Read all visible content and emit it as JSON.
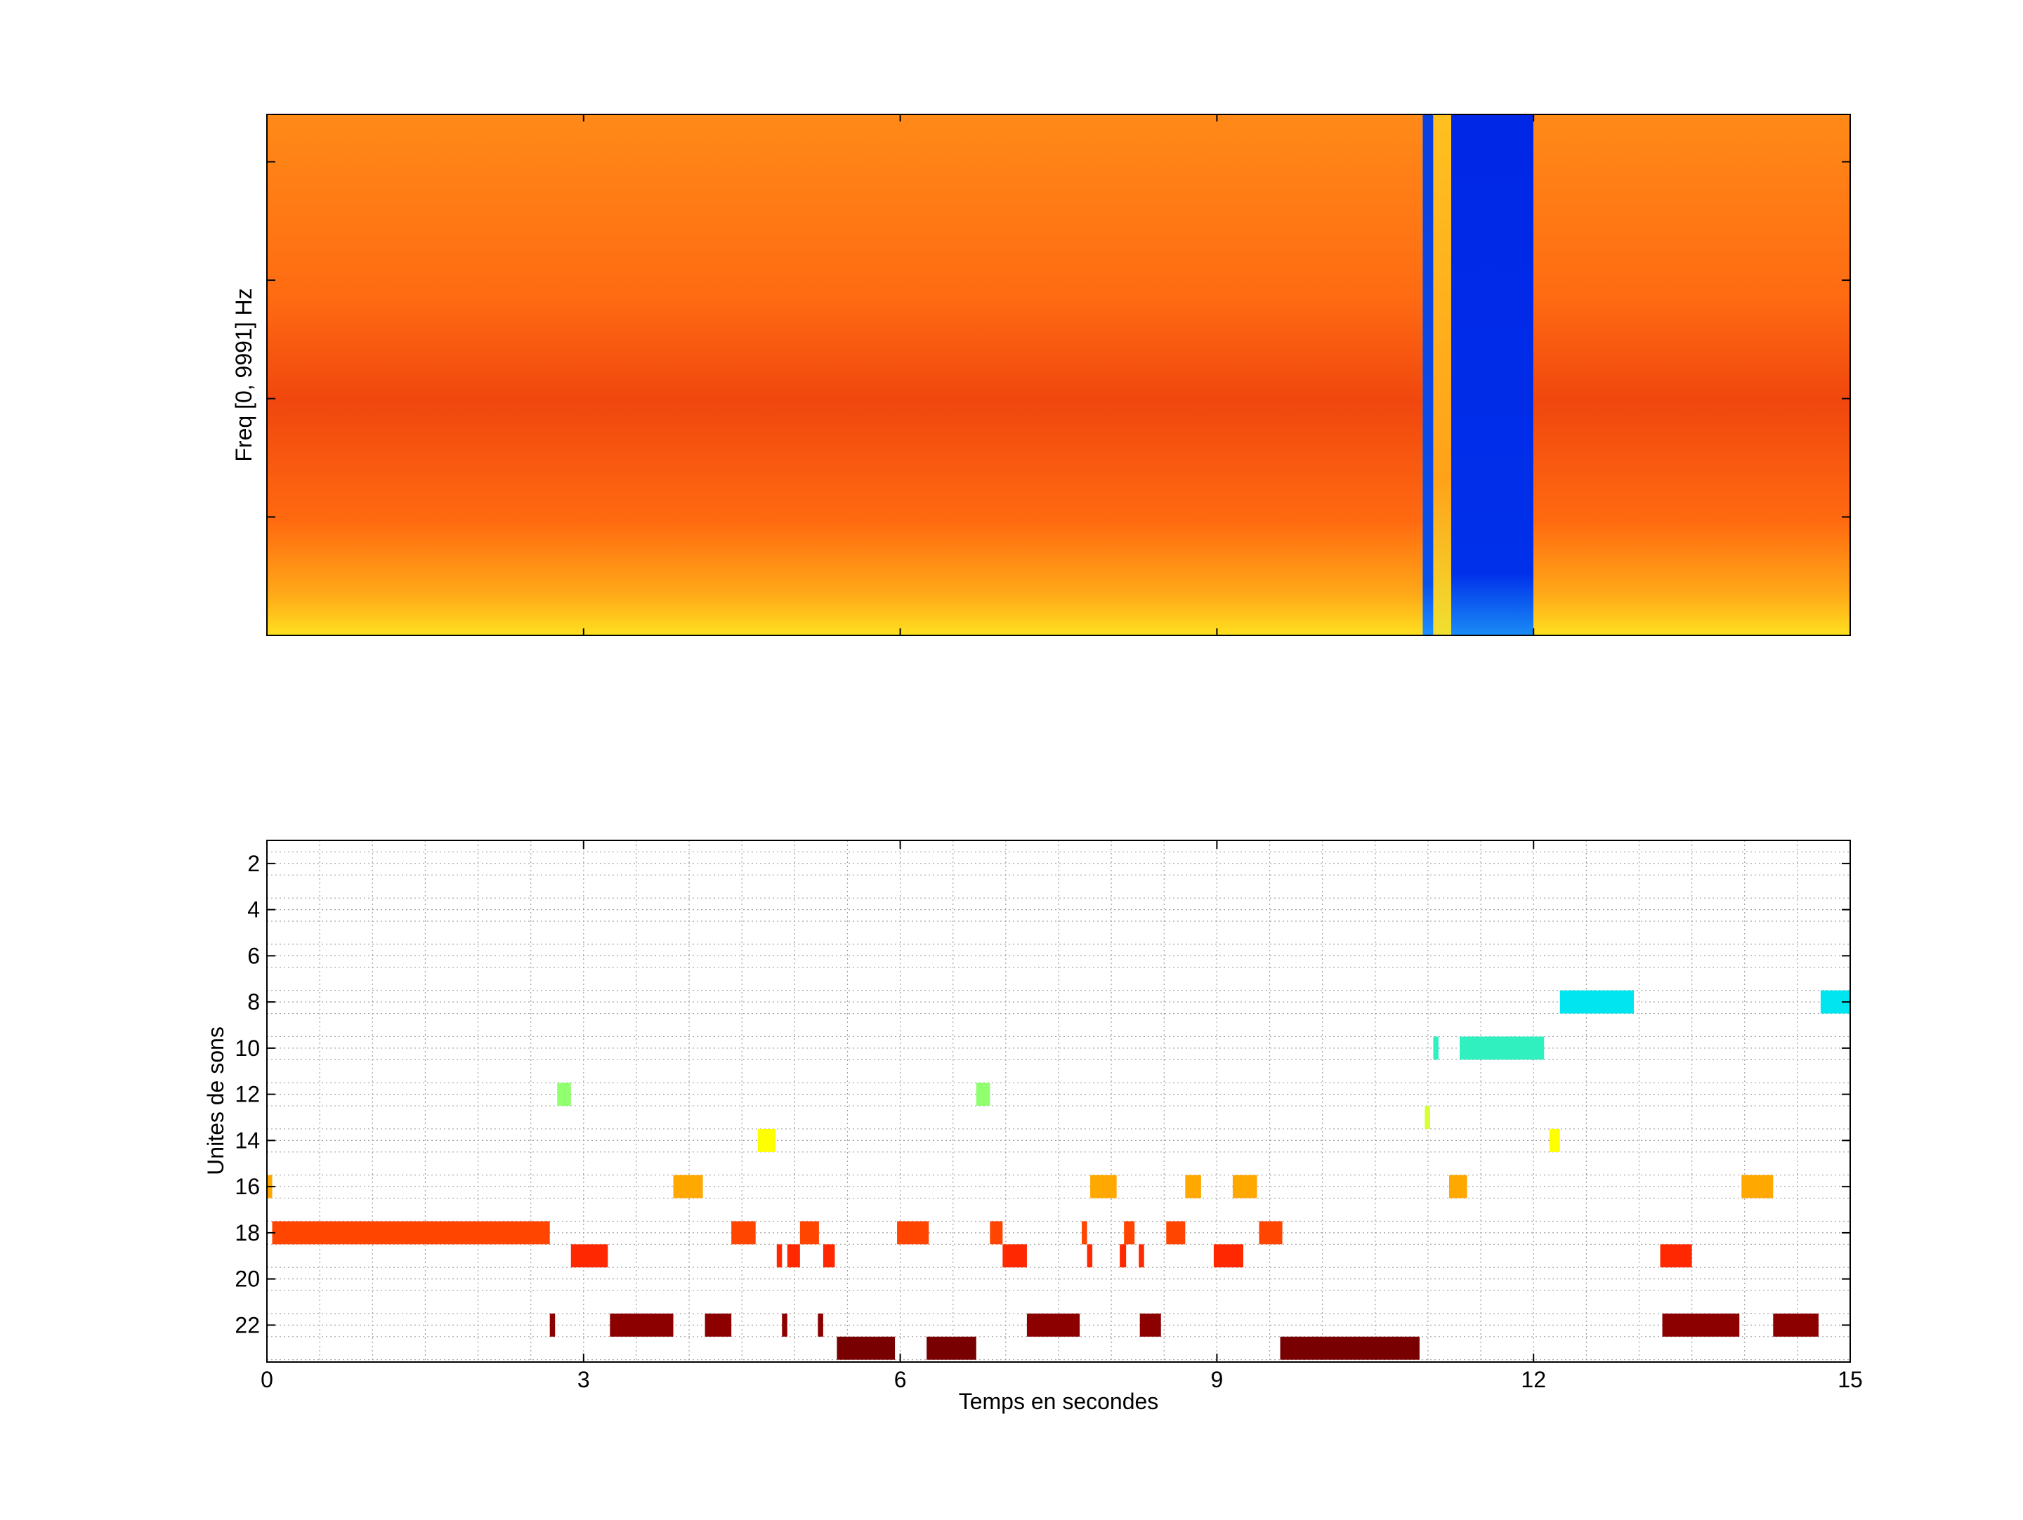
{
  "chart_data": [
    {
      "type": "heatmap",
      "title": "",
      "xlabel": "",
      "ylabel": "Freq [0, 9991] Hz",
      "xlim": [
        0,
        15
      ],
      "ylim": [
        0,
        9991
      ],
      "grid": false,
      "colormap": [
        "#0000d0",
        "#1e90ff",
        "#00e5ff",
        "#ffff00",
        "#ffa500",
        "#ff4500",
        "#b00000"
      ],
      "blocks": [
        {
          "x0": 0.0,
          "x1": 10.95,
          "level": "high",
          "color": "#ff6a12"
        },
        {
          "x0": 10.95,
          "x1": 11.05,
          "level": "low",
          "color": "#0a3fe0"
        },
        {
          "x0": 11.05,
          "x1": 11.22,
          "level": "mid",
          "color": "#ffa21a"
        },
        {
          "x0": 11.22,
          "x1": 12.0,
          "level": "silence",
          "color": "#0026e6"
        },
        {
          "x0": 12.0,
          "x1": 15.0,
          "level": "high",
          "color": "#ff6a12"
        }
      ]
    },
    {
      "type": "bar",
      "orientation": "horizontal-segments",
      "title": "",
      "xlabel": "Temps en secondes",
      "ylabel": "Unites de sons",
      "xlim": [
        0,
        15
      ],
      "ylim": [
        1,
        23.6
      ],
      "xticks": [
        0,
        3,
        6,
        9,
        12,
        15
      ],
      "yticks": [
        2,
        4,
        6,
        8,
        10,
        12,
        14,
        16,
        18,
        20,
        22
      ],
      "grid": true,
      "segments": [
        {
          "unit": 8,
          "start": 12.25,
          "end": 12.95,
          "color": "#00e5ef"
        },
        {
          "unit": 8,
          "start": 14.72,
          "end": 15.0,
          "color": "#00e5ef"
        },
        {
          "unit": 10,
          "start": 11.05,
          "end": 11.1,
          "color": "#30f0c0"
        },
        {
          "unit": 10,
          "start": 11.3,
          "end": 12.1,
          "color": "#30f0c0"
        },
        {
          "unit": 12,
          "start": 2.75,
          "end": 2.88,
          "color": "#90ff70"
        },
        {
          "unit": 12,
          "start": 6.72,
          "end": 6.85,
          "color": "#90ff70"
        },
        {
          "unit": 13,
          "start": 10.97,
          "end": 11.02,
          "color": "#d8ff30"
        },
        {
          "unit": 14,
          "start": 4.65,
          "end": 4.82,
          "color": "#ffff00"
        },
        {
          "unit": 14,
          "start": 12.15,
          "end": 12.25,
          "color": "#ffff00"
        },
        {
          "unit": 16,
          "start": 0.0,
          "end": 0.05,
          "color": "#ffa800"
        },
        {
          "unit": 16,
          "start": 3.85,
          "end": 4.13,
          "color": "#ffa800"
        },
        {
          "unit": 16,
          "start": 7.8,
          "end": 8.05,
          "color": "#ffa800"
        },
        {
          "unit": 16,
          "start": 8.7,
          "end": 8.85,
          "color": "#ffa800"
        },
        {
          "unit": 16,
          "start": 9.15,
          "end": 9.38,
          "color": "#ffa800"
        },
        {
          "unit": 16,
          "start": 11.2,
          "end": 11.37,
          "color": "#ffa800"
        },
        {
          "unit": 16,
          "start": 13.97,
          "end": 14.27,
          "color": "#ffa800"
        },
        {
          "unit": 18,
          "start": 0.05,
          "end": 2.68,
          "color": "#ff4500"
        },
        {
          "unit": 18,
          "start": 4.4,
          "end": 4.63,
          "color": "#ff4500"
        },
        {
          "unit": 18,
          "start": 5.05,
          "end": 5.23,
          "color": "#ff4500"
        },
        {
          "unit": 18,
          "start": 5.97,
          "end": 6.27,
          "color": "#ff4500"
        },
        {
          "unit": 18,
          "start": 6.85,
          "end": 6.97,
          "color": "#ff4500"
        },
        {
          "unit": 18,
          "start": 7.72,
          "end": 7.77,
          "color": "#ff4500"
        },
        {
          "unit": 18,
          "start": 8.12,
          "end": 8.22,
          "color": "#ff4500"
        },
        {
          "unit": 18,
          "start": 8.52,
          "end": 8.7,
          "color": "#ff4500"
        },
        {
          "unit": 18,
          "start": 9.4,
          "end": 9.62,
          "color": "#ff4500"
        },
        {
          "unit": 19,
          "start": 2.88,
          "end": 3.23,
          "color": "#ff2800"
        },
        {
          "unit": 19,
          "start": 4.83,
          "end": 4.88,
          "color": "#ff2800"
        },
        {
          "unit": 19,
          "start": 4.93,
          "end": 5.05,
          "color": "#ff2800"
        },
        {
          "unit": 19,
          "start": 5.27,
          "end": 5.38,
          "color": "#ff2800"
        },
        {
          "unit": 19,
          "start": 6.97,
          "end": 7.2,
          "color": "#ff2800"
        },
        {
          "unit": 19,
          "start": 7.77,
          "end": 7.82,
          "color": "#ff2800"
        },
        {
          "unit": 19,
          "start": 8.08,
          "end": 8.14,
          "color": "#ff2800"
        },
        {
          "unit": 19,
          "start": 8.26,
          "end": 8.31,
          "color": "#ff2800"
        },
        {
          "unit": 19,
          "start": 8.97,
          "end": 9.25,
          "color": "#ff2800"
        },
        {
          "unit": 19,
          "start": 13.2,
          "end": 13.5,
          "color": "#ff2800"
        },
        {
          "unit": 22,
          "start": 2.68,
          "end": 2.73,
          "color": "#8c0000"
        },
        {
          "unit": 22,
          "start": 3.25,
          "end": 3.85,
          "color": "#8c0000"
        },
        {
          "unit": 22,
          "start": 4.15,
          "end": 4.4,
          "color": "#8c0000"
        },
        {
          "unit": 22,
          "start": 4.88,
          "end": 4.93,
          "color": "#8c0000"
        },
        {
          "unit": 22,
          "start": 5.22,
          "end": 5.27,
          "color": "#8c0000"
        },
        {
          "unit": 22,
          "start": 7.2,
          "end": 7.7,
          "color": "#8c0000"
        },
        {
          "unit": 22,
          "start": 8.27,
          "end": 8.47,
          "color": "#8c0000"
        },
        {
          "unit": 22,
          "start": 13.22,
          "end": 13.95,
          "color": "#8c0000"
        },
        {
          "unit": 22,
          "start": 14.27,
          "end": 14.7,
          "color": "#8c0000"
        },
        {
          "unit": 23,
          "start": 5.4,
          "end": 5.95,
          "color": "#780000"
        },
        {
          "unit": 23,
          "start": 6.25,
          "end": 6.72,
          "color": "#780000"
        },
        {
          "unit": 23,
          "start": 9.6,
          "end": 10.92,
          "color": "#780000"
        }
      ]
    }
  ]
}
